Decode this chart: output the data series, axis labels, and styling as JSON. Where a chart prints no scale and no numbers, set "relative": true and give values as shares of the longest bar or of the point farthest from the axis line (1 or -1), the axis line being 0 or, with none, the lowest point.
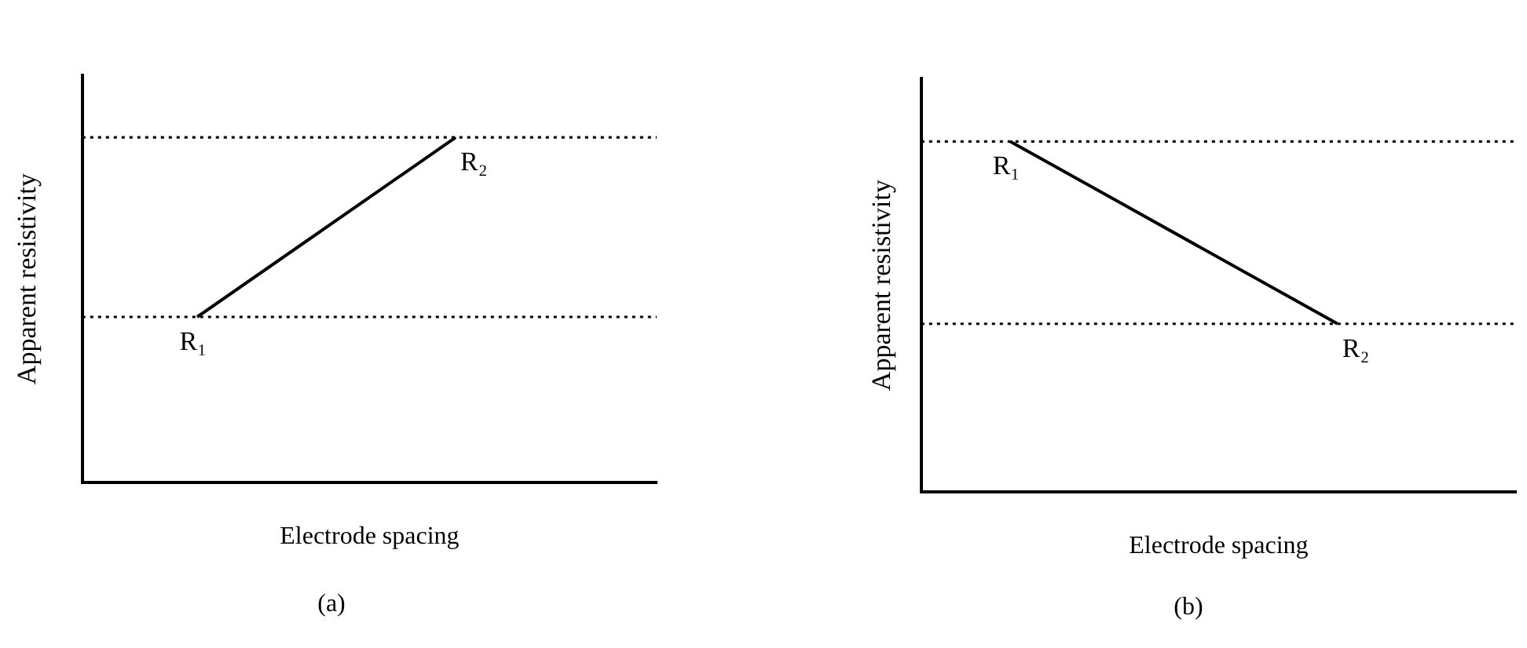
{
  "chart_data": [
    {
      "type": "line",
      "title": "(a)",
      "xlabel": "Electrode spacing",
      "ylabel": "Apparent resistivity",
      "relative": true,
      "tick_labels": false,
      "marker": "none",
      "categories": [
        null,
        null,
        null,
        null,
        null,
        null,
        null,
        null,
        null,
        null,
        null,
        null,
        null,
        null,
        null,
        null,
        null,
        null,
        null,
        null,
        null
      ],
      "series": [
        {
          "color": "#000000",
          "values": [
            null,
            null,
            null,
            null,
            0.48,
            null,
            null,
            null,
            null,
            null,
            null,
            null,
            null,
            1,
            null,
            null,
            null,
            null,
            null,
            null,
            null
          ]
        }
      ],
      "ref_lines": [
        {
          "axis": "y",
          "value": 0.48,
          "label": "R₁",
          "color": "#000000",
          "line_style": "dotted"
        },
        {
          "axis": "y",
          "value": 1,
          "label": "R₂",
          "color": "#000000",
          "line_style": "dotted"
        }
      ]
    },
    {
      "type": "line",
      "title": "(b)",
      "xlabel": "Electrode spacing",
      "ylabel": "Apparent resistivity",
      "relative": true,
      "tick_labels": false,
      "marker": "none",
      "categories": [
        null,
        null,
        null,
        null,
        null,
        null,
        null,
        null,
        null,
        null,
        null,
        null,
        null,
        null,
        null,
        null,
        null,
        null,
        null,
        null,
        null
      ],
      "series": [
        {
          "color": "#000000",
          "values": [
            null,
            null,
            null,
            1,
            null,
            null,
            null,
            null,
            null,
            null,
            null,
            null,
            null,
            null,
            0.48,
            null,
            null,
            null,
            null,
            null,
            null
          ]
        }
      ],
      "ref_lines": [
        {
          "axis": "y",
          "value": 1,
          "label": "R₁",
          "color": "#000000",
          "line_style": "dotted"
        },
        {
          "axis": "y",
          "value": 0.48,
          "label": "R₂",
          "color": "#000000",
          "line_style": "dotted"
        }
      ]
    }
  ]
}
